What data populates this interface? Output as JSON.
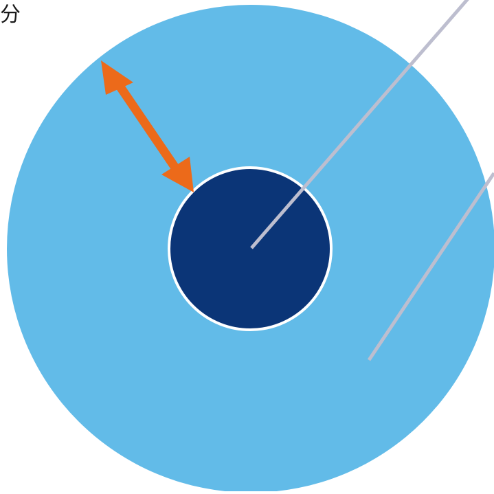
{
  "label": {
    "text": "分"
  },
  "colors": {
    "background": "#ffffff",
    "outer_circle": "#62bbe8",
    "inner_circle": "#0b3577",
    "inner_circle_border": "#ffffff",
    "arrow": "#ec6a1a",
    "lines": "#bdbecf",
    "text": "#1a1a1a"
  }
}
